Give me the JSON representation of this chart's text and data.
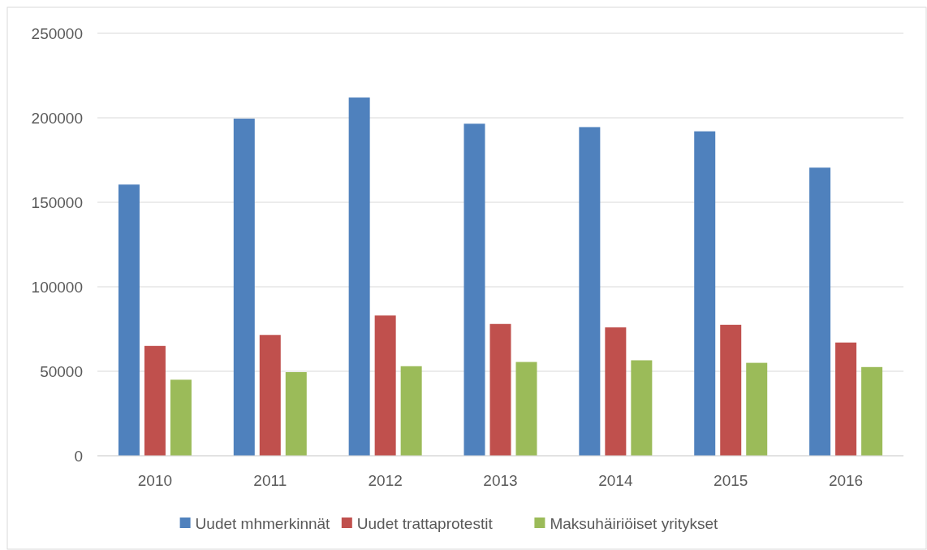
{
  "chart_data": {
    "type": "bar",
    "categories": [
      "2010",
      "2011",
      "2012",
      "2013",
      "2014",
      "2015",
      "2016"
    ],
    "series": [
      {
        "name": "Uudet mhmerkinnät",
        "color": "#4f81bd",
        "values": [
          160500,
          199500,
          212000,
          196500,
          194500,
          192000,
          170500
        ]
      },
      {
        "name": "Uudet trattaprotestit",
        "color": "#c0504d",
        "values": [
          65000,
          71500,
          83000,
          78000,
          76000,
          77500,
          67000
        ]
      },
      {
        "name": "Maksuhäiriöiset yritykset",
        "color": "#9bbb59",
        "values": [
          45000,
          49500,
          53000,
          55500,
          56500,
          55000,
          52500
        ]
      }
    ],
    "ylim": [
      0,
      250000
    ],
    "yticks": [
      0,
      50000,
      100000,
      150000,
      200000,
      250000
    ],
    "grid": "y",
    "legend": "bottom"
  }
}
